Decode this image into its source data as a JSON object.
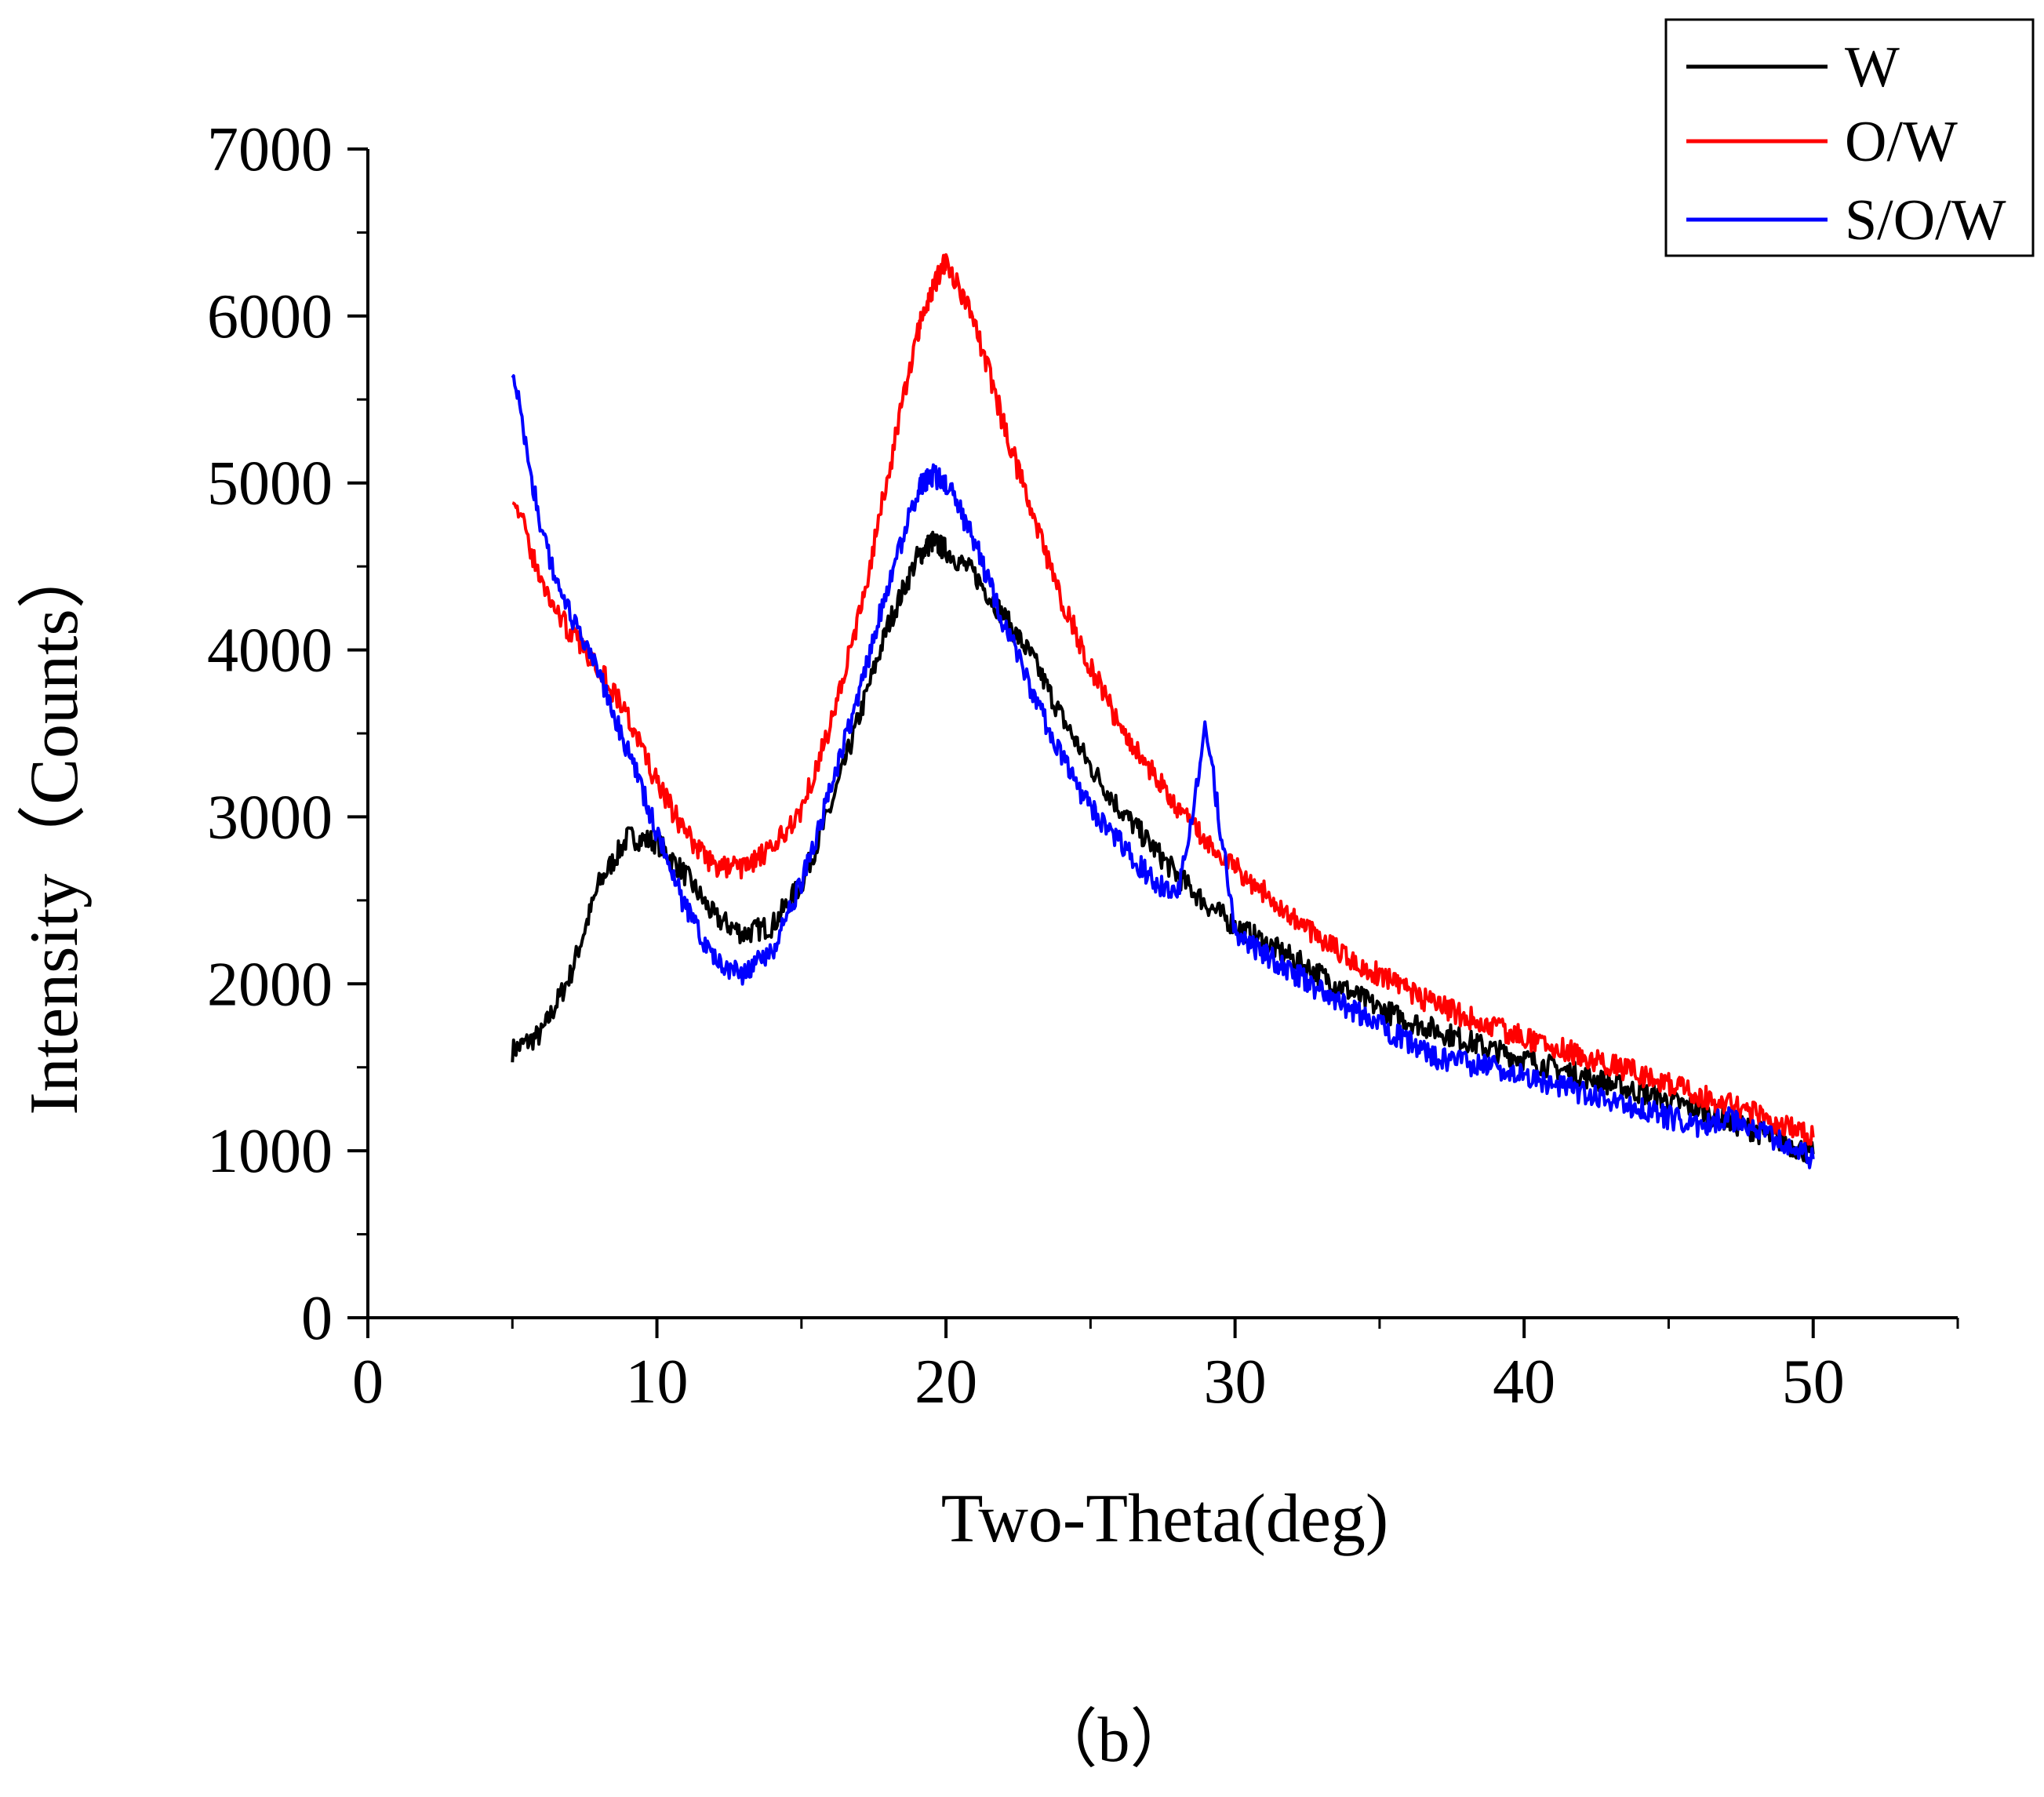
{
  "chart_data": {
    "type": "line",
    "title": "",
    "xlabel": "Two-Theta(deg)",
    "ylabel": "Intensity（Counts）",
    "caption": "（b）",
    "xlim": [
      0,
      55
    ],
    "ylim": [
      0,
      7000
    ],
    "xticks": [
      0,
      10,
      20,
      30,
      40,
      50
    ],
    "xtick_labels": [
      "0",
      "10",
      "20",
      "30",
      "40",
      "50"
    ],
    "yticks": [
      0,
      1000,
      2000,
      3000,
      4000,
      5000,
      6000,
      7000
    ],
    "ytick_labels": [
      "0",
      "1000",
      "2000",
      "3000",
      "4000",
      "5000",
      "6000",
      "7000"
    ],
    "grid": false,
    "legend": "top-right",
    "x": [
      5,
      6,
      7,
      8,
      9,
      10,
      11,
      12,
      13,
      14,
      15,
      16,
      17,
      18,
      19,
      19.5,
      20,
      21,
      22,
      23,
      24,
      25,
      26,
      27,
      28,
      29,
      30,
      31,
      32,
      33,
      34,
      35,
      36,
      37,
      38,
      39,
      40,
      41,
      42,
      43,
      44,
      45,
      46,
      47,
      48,
      49,
      50
    ],
    "series": [
      {
        "name": "W",
        "color": "#000000",
        "values": [
          1600,
          1700,
          2050,
          2600,
          2880,
          2850,
          2650,
          2400,
          2300,
          2350,
          2600,
          3050,
          3600,
          4150,
          4550,
          4650,
          4600,
          4450,
          4200,
          3950,
          3600,
          3300,
          3050,
          2850,
          2650,
          2480,
          2350,
          2250,
          2150,
          2050,
          1950,
          1850,
          1780,
          1720,
          1660,
          1600,
          1550,
          1500,
          1450,
          1400,
          1350,
          1300,
          1250,
          1180,
          1120,
          1050,
          980
        ]
      },
      {
        "name": "O/W",
        "color": "#ff0000",
        "values": [
          4950,
          4400,
          4100,
          3900,
          3600,
          3200,
          2900,
          2700,
          2700,
          2800,
          3050,
          3550,
          4200,
          5050,
          5900,
          6150,
          6350,
          5950,
          5350,
          4800,
          4300,
          3900,
          3550,
          3300,
          3050,
          2850,
          2700,
          2550,
          2400,
          2270,
          2150,
          2050,
          1950,
          1870,
          1800,
          1740,
          1680,
          1620,
          1570,
          1520,
          1460,
          1400,
          1340,
          1280,
          1220,
          1150,
          1080
        ]
      },
      {
        "name": "S/O/W",
        "color": "#0000ff",
        "values": [
          5700,
          4700,
          4200,
          3850,
          3400,
          2900,
          2450,
          2150,
          2050,
          2200,
          2600,
          3150,
          3750,
          4400,
          4950,
          5050,
          5000,
          4650,
          4150,
          3750,
          3350,
          3050,
          2850,
          2650,
          2500,
          3550,
          2300,
          2180,
          2070,
          1950,
          1850,
          1750,
          1650,
          1550,
          1520,
          1500,
          1450,
          1400,
          1350,
          1300,
          1250,
          1200,
          1150,
          1200,
          1120,
          1050,
          950
        ]
      }
    ]
  }
}
